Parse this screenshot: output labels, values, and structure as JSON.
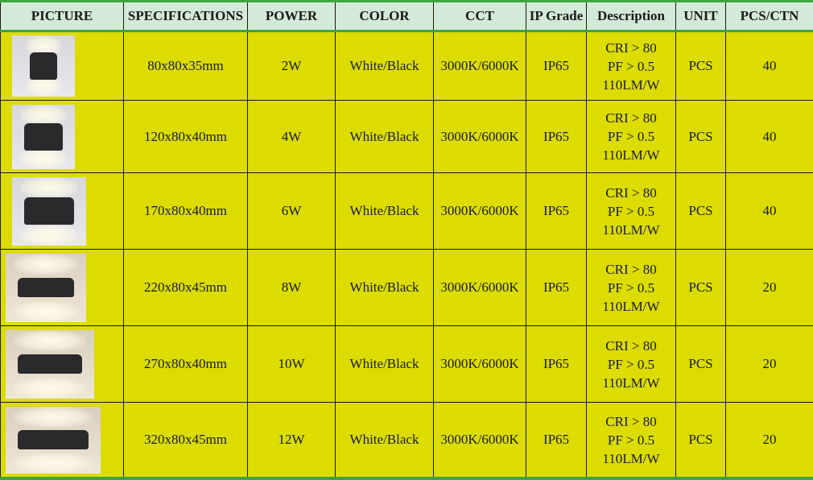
{
  "headers": [
    "PICTURE",
    "SPECIFICATIONS",
    "POWER",
    "COLOR",
    "CCT",
    "IP Grade",
    "Description",
    "UNIT",
    "PCS/CTN"
  ],
  "rows": [
    {
      "spec": "80x80x35mm",
      "power": "2W",
      "color": "White/Black",
      "cct": "3000K/6000K",
      "ip": "IP65",
      "desc": [
        "CRI > 80",
        "PF > 0.5",
        "110LM/W"
      ],
      "unit": "PCS",
      "pcs": "40",
      "picture": "wall-lamp-2-light"
    },
    {
      "spec": "120x80x40mm",
      "power": "4W",
      "color": "White/Black",
      "cct": "3000K/6000K",
      "ip": "IP65",
      "desc": [
        "CRI > 80",
        "PF > 0.5",
        "110LM/W"
      ],
      "unit": "PCS",
      "pcs": "40",
      "picture": "wall-lamp-4-light"
    },
    {
      "spec": "170x80x40mm",
      "power": "6W",
      "color": "White/Black",
      "cct": "3000K/6000K",
      "ip": "IP65",
      "desc": [
        "CRI > 80",
        "PF > 0.5",
        "110LM/W"
      ],
      "unit": "PCS",
      "pcs": "40",
      "picture": "wall-lamp-6-light"
    },
    {
      "spec": "220x80x45mm",
      "power": "8W",
      "color": "White/Black",
      "cct": "3000K/6000K",
      "ip": "IP65",
      "desc": [
        "CRI > 80",
        "PF > 0.5",
        "110LM/W"
      ],
      "unit": "PCS",
      "pcs": "20",
      "picture": "wall-lamp-8-light"
    },
    {
      "spec": "270x80x40mm",
      "power": "10W",
      "color": "White/Black",
      "cct": "3000K/6000K",
      "ip": "IP65",
      "desc": [
        "CRI > 80",
        "PF > 0.5",
        "110LM/W"
      ],
      "unit": "PCS",
      "pcs": "20",
      "picture": "wall-lamp-10-light"
    },
    {
      "spec": "320x80x45mm",
      "power": "12W",
      "color": "White/Black",
      "cct": "3000K/6000K",
      "ip": "IP65",
      "desc": [
        "CRI > 80",
        "PF > 0.5",
        "110LM/W"
      ],
      "unit": "PCS",
      "pcs": "20",
      "picture": "wall-lamp-12-light"
    }
  ],
  "colors": {
    "header_bg": "#d4ead8",
    "cell_bg": "#dcdc00",
    "accent_border": "#3aa640"
  }
}
